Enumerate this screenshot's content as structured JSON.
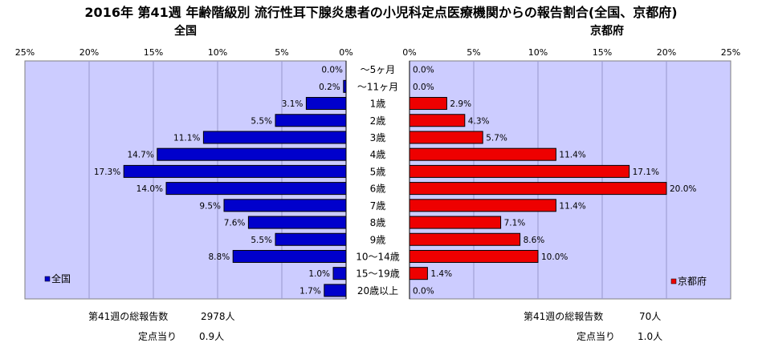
{
  "title": "2016年 第41週 年齢階級別 流行性耳下腺炎患者の小児科定点医療機関からの報告割合(全国、京都府)",
  "colors": {
    "plot_bg": "#ccccff",
    "national_bar": "#0000cc",
    "kyoto_bar": "#ee0000",
    "bar_border": "#000000",
    "grid": "#9999cc"
  },
  "chart_data": [
    {
      "type": "bar",
      "orientation": "horizontal",
      "direction": "right-to-left",
      "title": "全国",
      "legend": "全国",
      "legend_position": "bottom-left",
      "categories": [
        "～5ヶ月",
        "～11ヶ月",
        "1歳",
        "2歳",
        "3歳",
        "4歳",
        "5歳",
        "6歳",
        "7歳",
        "8歳",
        "9歳",
        "10～14歳",
        "15～19歳",
        "20歳以上"
      ],
      "values": [
        0.0,
        0.2,
        3.1,
        5.5,
        11.1,
        14.7,
        17.3,
        14.0,
        9.5,
        7.6,
        5.5,
        8.8,
        1.0,
        1.7
      ],
      "value_labels": [
        "0.0%",
        "0.2%",
        "3.1%",
        "5.5%",
        "11.1%",
        "14.7%",
        "17.3%",
        "14.0%",
        "9.5%",
        "7.6%",
        "5.5%",
        "8.8%",
        "1.0%",
        "1.7%"
      ],
      "xlim": [
        0,
        25
      ],
      "ticks": [
        "25%",
        "20%",
        "15%",
        "10%",
        "5%",
        "0%"
      ],
      "grid": true
    },
    {
      "type": "bar",
      "orientation": "horizontal",
      "direction": "left-to-right",
      "title": "京都府",
      "legend": "京都府",
      "legend_position": "bottom-right",
      "categories": [
        "～5ヶ月",
        "～11ヶ月",
        "1歳",
        "2歳",
        "3歳",
        "4歳",
        "5歳",
        "6歳",
        "7歳",
        "8歳",
        "9歳",
        "10～14歳",
        "15～19歳",
        "20歳以上"
      ],
      "values": [
        0.0,
        0.0,
        2.9,
        4.3,
        5.7,
        11.4,
        17.1,
        20.0,
        11.4,
        7.1,
        8.6,
        10.0,
        1.4,
        0.0
      ],
      "value_labels": [
        "0.0%",
        "0.0%",
        "2.9%",
        "4.3%",
        "5.7%",
        "11.4%",
        "17.1%",
        "20.0%",
        "11.4%",
        "7.1%",
        "8.6%",
        "10.0%",
        "1.4%",
        "0.0%"
      ],
      "xlim": [
        0,
        25
      ],
      "ticks": [
        "0%",
        "5%",
        "10%",
        "15%",
        "20%",
        "25%"
      ],
      "grid": true
    }
  ],
  "footer": {
    "national_total_label": "第41週の総報告数",
    "national_total_value": "2978人",
    "national_per_label": "定点当り",
    "national_per_value": "0.9人",
    "kyoto_total_label": "第41週の総報告数",
    "kyoto_total_value": "70人",
    "kyoto_per_label": "定点当り",
    "kyoto_per_value": "1.0人"
  }
}
